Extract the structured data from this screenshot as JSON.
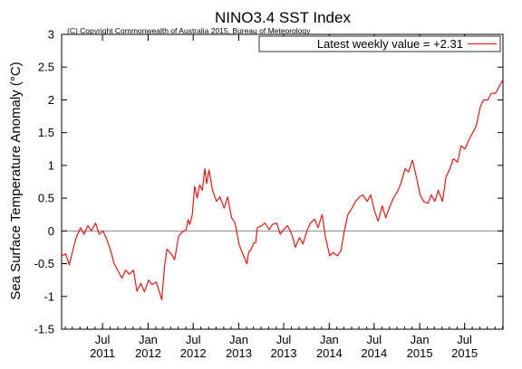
{
  "chart_data": {
    "type": "line",
    "title": "NINO3.4 SST Index",
    "copyright": "(C) Copyright Commonwealth of Australia 2015, Bureau of Meteorology",
    "ylabel": "Sea Surface Temperature Anomaly (°C)",
    "xlabel": "",
    "ylim": [
      -1.5,
      3
    ],
    "yticks": [
      -1.5,
      -1,
      -0.5,
      0,
      0.5,
      1,
      1.5,
      2,
      2.5,
      3
    ],
    "ytick_labels": [
      "-1.5",
      "-1",
      "-0.5",
      "0",
      "0.5",
      "1",
      "1.5",
      "2",
      "2.5",
      "3"
    ],
    "xlim": [
      "2011-01-17",
      "2015-12-03"
    ],
    "xticks": [
      "2011-07-01",
      "2012-01-01",
      "2012-07-01",
      "2013-01-01",
      "2013-07-01",
      "2014-01-01",
      "2014-07-01",
      "2015-01-01",
      "2015-07-01"
    ],
    "xtick_labels": [
      [
        "Jul",
        "2011"
      ],
      [
        "Jan",
        "2012"
      ],
      [
        "Jul",
        "2012"
      ],
      [
        "Jan",
        "2013"
      ],
      [
        "Jul",
        "2013"
      ],
      [
        "Jan",
        "2014"
      ],
      [
        "Jul",
        "2014"
      ],
      [
        "Jan",
        "2015"
      ],
      [
        "Jul",
        "2015"
      ]
    ],
    "zero_line": true,
    "grid": false,
    "legend_position": "top-right",
    "line_color": "#ff0000",
    "series": [
      {
        "name": "Latest weekly value = +2.31",
        "points": [
          [
            "2011-01-17",
            -0.38
          ],
          [
            "2011-02-03",
            -0.35
          ],
          [
            "2011-02-17",
            -0.52
          ],
          [
            "2011-03-03",
            -0.3
          ],
          [
            "2011-03-17",
            -0.1
          ],
          [
            "2011-04-03",
            0.05
          ],
          [
            "2011-04-17",
            -0.05
          ],
          [
            "2011-05-03",
            0.08
          ],
          [
            "2011-05-17",
            0.0
          ],
          [
            "2011-06-03",
            0.12
          ],
          [
            "2011-06-17",
            -0.05
          ],
          [
            "2011-07-03",
            0.0
          ],
          [
            "2011-07-17",
            -0.12
          ],
          [
            "2011-08-03",
            -0.3
          ],
          [
            "2011-08-17",
            -0.5
          ],
          [
            "2011-09-03",
            -0.62
          ],
          [
            "2011-09-17",
            -0.72
          ],
          [
            "2011-10-03",
            -0.6
          ],
          [
            "2011-10-17",
            -0.66
          ],
          [
            "2011-11-03",
            -0.6
          ],
          [
            "2011-11-17",
            -0.92
          ],
          [
            "2011-12-03",
            -0.8
          ],
          [
            "2011-12-17",
            -0.93
          ],
          [
            "2012-01-03",
            -0.75
          ],
          [
            "2012-01-17",
            -0.82
          ],
          [
            "2012-02-03",
            -0.78
          ],
          [
            "2012-02-17",
            -0.95
          ],
          [
            "2012-02-25",
            -1.05
          ],
          [
            "2012-03-07",
            -0.55
          ],
          [
            "2012-03-17",
            -0.28
          ],
          [
            "2012-04-03",
            -0.35
          ],
          [
            "2012-04-17",
            -0.44
          ],
          [
            "2012-05-03",
            -0.08
          ],
          [
            "2012-05-17",
            -0.02
          ],
          [
            "2012-06-03",
            0.02
          ],
          [
            "2012-06-10",
            0.17
          ],
          [
            "2012-06-17",
            0.1
          ],
          [
            "2012-06-27",
            0.24
          ],
          [
            "2012-07-07",
            0.68
          ],
          [
            "2012-07-17",
            0.5
          ],
          [
            "2012-07-27",
            0.7
          ],
          [
            "2012-08-07",
            0.62
          ],
          [
            "2012-08-17",
            0.95
          ],
          [
            "2012-08-24",
            0.72
          ],
          [
            "2012-09-03",
            0.93
          ],
          [
            "2012-09-17",
            0.62
          ],
          [
            "2012-10-03",
            0.45
          ],
          [
            "2012-10-17",
            0.52
          ],
          [
            "2012-11-03",
            0.35
          ],
          [
            "2012-11-17",
            0.52
          ],
          [
            "2012-12-03",
            0.2
          ],
          [
            "2012-12-17",
            0.12
          ],
          [
            "2013-01-03",
            -0.22
          ],
          [
            "2013-01-17",
            -0.35
          ],
          [
            "2013-02-03",
            -0.5
          ],
          [
            "2013-02-10",
            -0.32
          ],
          [
            "2013-02-17",
            -0.3
          ],
          [
            "2013-03-03",
            -0.18
          ],
          [
            "2013-03-10",
            -0.18
          ],
          [
            "2013-03-17",
            0.05
          ],
          [
            "2013-04-03",
            0.08
          ],
          [
            "2013-04-17",
            0.12
          ],
          [
            "2013-05-03",
            0.02
          ],
          [
            "2013-05-17",
            0.1
          ],
          [
            "2013-06-03",
            0.12
          ],
          [
            "2013-06-17",
            -0.05
          ],
          [
            "2013-07-03",
            0.03
          ],
          [
            "2013-07-17",
            0.08
          ],
          [
            "2013-08-03",
            -0.05
          ],
          [
            "2013-08-17",
            -0.25
          ],
          [
            "2013-09-03",
            -0.1
          ],
          [
            "2013-09-17",
            -0.2
          ],
          [
            "2013-10-03",
            0.0
          ],
          [
            "2013-10-17",
            0.12
          ],
          [
            "2013-11-03",
            0.18
          ],
          [
            "2013-11-17",
            0.05
          ],
          [
            "2013-12-03",
            0.25
          ],
          [
            "2013-12-17",
            -0.1
          ],
          [
            "2014-01-03",
            -0.38
          ],
          [
            "2014-01-17",
            -0.33
          ],
          [
            "2014-02-03",
            -0.38
          ],
          [
            "2014-02-17",
            -0.3
          ],
          [
            "2014-03-03",
            0.0
          ],
          [
            "2014-03-17",
            0.25
          ],
          [
            "2014-04-03",
            0.35
          ],
          [
            "2014-04-17",
            0.45
          ],
          [
            "2014-05-03",
            0.52
          ],
          [
            "2014-05-17",
            0.55
          ],
          [
            "2014-06-03",
            0.45
          ],
          [
            "2014-06-17",
            0.55
          ],
          [
            "2014-07-03",
            0.3
          ],
          [
            "2014-07-17",
            0.15
          ],
          [
            "2014-08-03",
            0.38
          ],
          [
            "2014-08-17",
            0.2
          ],
          [
            "2014-09-03",
            0.38
          ],
          [
            "2014-09-17",
            0.5
          ],
          [
            "2014-10-03",
            0.6
          ],
          [
            "2014-10-17",
            0.72
          ],
          [
            "2014-11-03",
            0.95
          ],
          [
            "2014-11-17",
            0.9
          ],
          [
            "2014-12-03",
            1.08
          ],
          [
            "2014-12-17",
            0.85
          ],
          [
            "2015-01-03",
            0.55
          ],
          [
            "2015-01-17",
            0.45
          ],
          [
            "2015-02-03",
            0.42
          ],
          [
            "2015-02-17",
            0.55
          ],
          [
            "2015-03-03",
            0.45
          ],
          [
            "2015-03-17",
            0.62
          ],
          [
            "2015-04-03",
            0.45
          ],
          [
            "2015-04-17",
            0.82
          ],
          [
            "2015-05-03",
            0.95
          ],
          [
            "2015-05-17",
            1.1
          ],
          [
            "2015-06-03",
            1.05
          ],
          [
            "2015-06-17",
            1.3
          ],
          [
            "2015-07-03",
            1.25
          ],
          [
            "2015-07-17",
            1.38
          ],
          [
            "2015-08-03",
            1.5
          ],
          [
            "2015-08-17",
            1.6
          ],
          [
            "2015-09-03",
            1.9
          ],
          [
            "2015-09-17",
            2.0
          ],
          [
            "2015-10-03",
            2.0
          ],
          [
            "2015-10-17",
            2.1
          ],
          [
            "2015-11-03",
            2.1
          ],
          [
            "2015-11-17",
            2.2
          ],
          [
            "2015-12-03",
            2.31
          ]
        ]
      }
    ]
  }
}
